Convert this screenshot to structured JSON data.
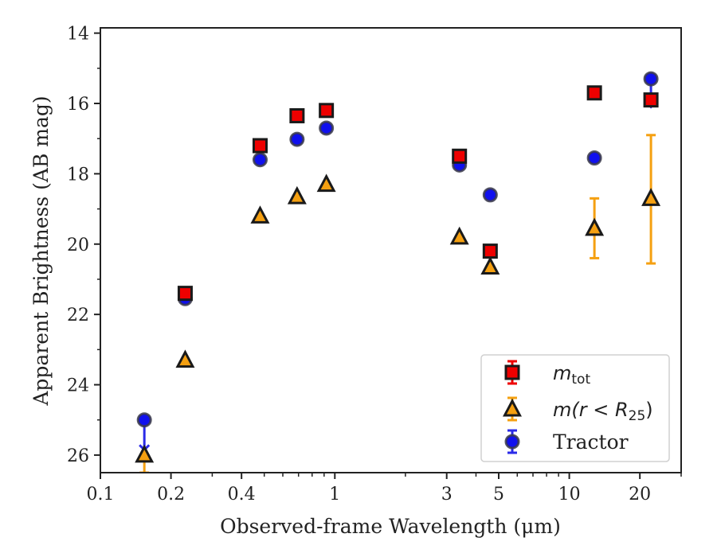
{
  "chart_data": {
    "type": "scatter",
    "xlabel": "Observed-frame Wavelength (μm)",
    "ylabel": "Apparent Brightness (AB mag)",
    "xscale": "log",
    "xlim": [
      0.1,
      30
    ],
    "ylim": [
      26.5,
      13.85
    ],
    "y_inverted": true,
    "grid": false,
    "legend_position": "lower-right",
    "x_ticks": [
      0.1,
      0.2,
      0.4,
      1,
      3,
      5,
      10,
      20
    ],
    "x_tick_labels": [
      "0.1",
      "0.2",
      "0.4",
      "1",
      "3",
      "5",
      "10",
      "20"
    ],
    "y_ticks": [
      14,
      16,
      18,
      20,
      22,
      24,
      26
    ],
    "y_tick_labels": [
      "14",
      "16",
      "18",
      "20",
      "22",
      "24",
      "26"
    ],
    "series": [
      {
        "name": "m_tot",
        "legend_main": "m",
        "legend_sub": "tot",
        "marker": "square",
        "color": "#ee0000",
        "edge": "#1a1a1a",
        "points": [
          {
            "x": 0.23,
            "y": 21.4
          },
          {
            "x": 0.48,
            "y": 17.2
          },
          {
            "x": 0.69,
            "y": 16.35
          },
          {
            "x": 0.92,
            "y": 16.2
          },
          {
            "x": 3.4,
            "y": 17.5
          },
          {
            "x": 4.6,
            "y": 20.2
          },
          {
            "x": 12.8,
            "y": 15.7
          },
          {
            "x": 22.3,
            "y": 15.9
          }
        ]
      },
      {
        "name": "m(r < R_25)",
        "legend_main": "m(r < R",
        "legend_sub": "25",
        "legend_tail": ")",
        "marker": "triangle",
        "color": "#f5a011",
        "edge": "#1a1a1a",
        "points": [
          {
            "x": 0.154,
            "y": 26.0,
            "err_low": 26.5,
            "err_high": 26.0
          },
          {
            "x": 0.23,
            "y": 23.3
          },
          {
            "x": 0.48,
            "y": 19.2
          },
          {
            "x": 0.69,
            "y": 18.65
          },
          {
            "x": 0.92,
            "y": 18.3
          },
          {
            "x": 3.4,
            "y": 19.8
          },
          {
            "x": 4.6,
            "y": 20.65
          },
          {
            "x": 12.8,
            "y": 19.55,
            "err_low": 18.7,
            "err_high": 20.4
          },
          {
            "x": 22.3,
            "y": 18.7,
            "err_low": 16.9,
            "err_high": 20.55
          }
        ]
      },
      {
        "name": "Tractor",
        "legend_main": "Tractor",
        "marker": "circle",
        "color": "#1010ee",
        "edge": "#3a3a4a",
        "points": [
          {
            "x": 0.154,
            "y": 25.0,
            "err_low": 25.0,
            "err_high": 25.85
          },
          {
            "x": 0.23,
            "y": 21.55
          },
          {
            "x": 0.48,
            "y": 17.6
          },
          {
            "x": 0.69,
            "y": 17.02
          },
          {
            "x": 0.92,
            "y": 16.7
          },
          {
            "x": 3.4,
            "y": 17.75
          },
          {
            "x": 4.6,
            "y": 18.6
          },
          {
            "x": 12.8,
            "y": 17.55
          },
          {
            "x": 22.3,
            "y": 15.3,
            "err_low": 15.3,
            "err_high": 16.1
          }
        ]
      }
    ]
  }
}
